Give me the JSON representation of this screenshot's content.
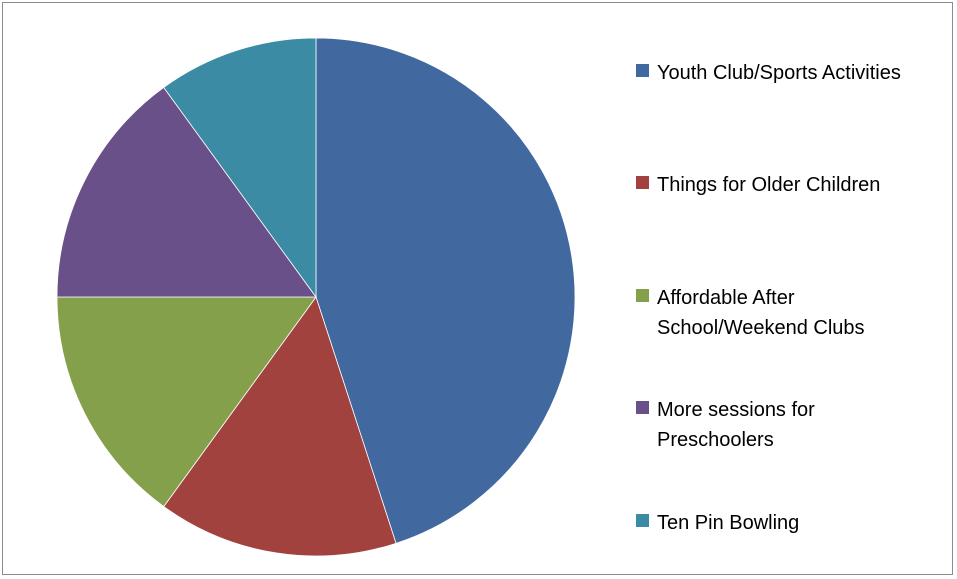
{
  "chart_data": {
    "type": "pie",
    "legend_position": "right",
    "slices": [
      {
        "label": "Youth Club/Sports Activities",
        "value": 45,
        "color": "#4169A0"
      },
      {
        "label": "Things for Older Children",
        "value": 15,
        "color": "#A2423F"
      },
      {
        "label": "Affordable After School/Weekend Clubs",
        "value": 15,
        "color": "#85A04A"
      },
      {
        "label": "More sessions for Preschoolers",
        "value": 15,
        "color": "#6A5088"
      },
      {
        "label": "Ten Pin Bowling",
        "value": 10,
        "color": "#3A8BA3"
      }
    ]
  }
}
